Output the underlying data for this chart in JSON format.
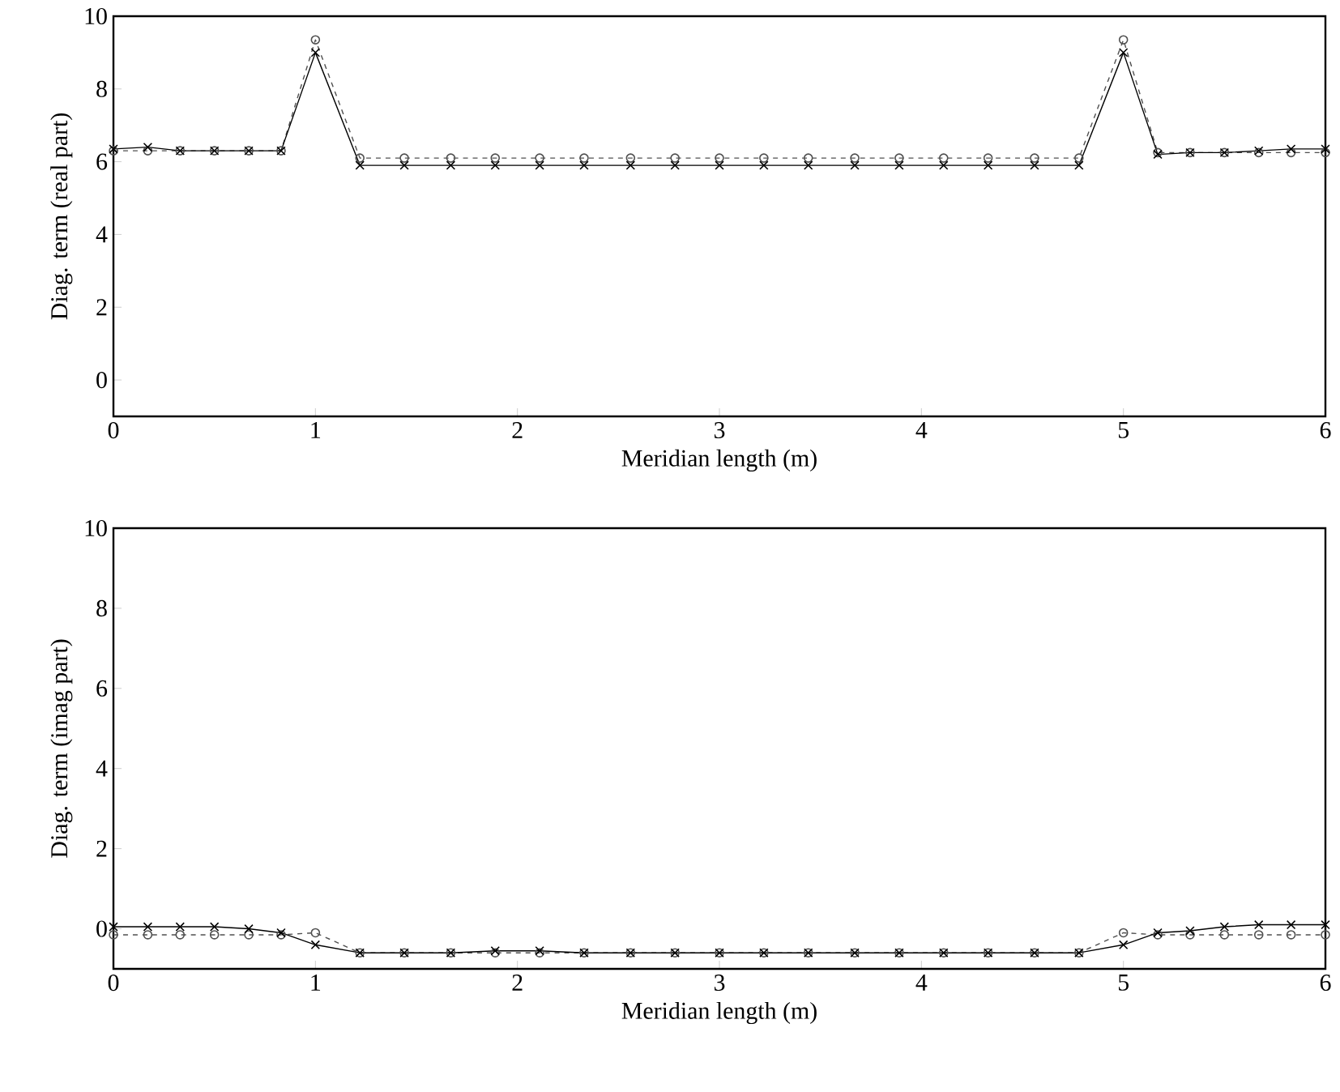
{
  "chart_data": [
    {
      "type": "line",
      "xlabel": "Meridian length (m)",
      "ylabel": "Diag. term (real part)",
      "xlim": [
        0,
        6
      ],
      "ylim": [
        -1,
        10
      ],
      "xticks": [
        0,
        1,
        2,
        3,
        4,
        5,
        6
      ],
      "yticks": [
        0,
        2,
        4,
        6,
        8,
        10
      ],
      "x": [
        0,
        0.17,
        0.33,
        0.5,
        0.67,
        0.83,
        1.0,
        1.22,
        1.44,
        1.67,
        1.89,
        2.11,
        2.33,
        2.56,
        2.78,
        3.0,
        3.22,
        3.44,
        3.67,
        3.89,
        4.11,
        4.33,
        4.56,
        4.78,
        5.0,
        5.17,
        5.33,
        5.5,
        5.67,
        5.83,
        6.0
      ],
      "series": [
        {
          "color": "#505050",
          "marker": "circle",
          "line_style": "dashed",
          "values": [
            6.3,
            6.3,
            6.3,
            6.3,
            6.3,
            6.3,
            9.35,
            6.1,
            6.1,
            6.1,
            6.1,
            6.1,
            6.1,
            6.1,
            6.1,
            6.1,
            6.1,
            6.1,
            6.1,
            6.1,
            6.1,
            6.1,
            6.1,
            6.1,
            9.35,
            6.25,
            6.25,
            6.25,
            6.25,
            6.25,
            6.25
          ]
        },
        {
          "color": "#000000",
          "marker": "cross",
          "line_style": "solid",
          "values": [
            6.35,
            6.4,
            6.3,
            6.3,
            6.3,
            6.3,
            9.0,
            5.9,
            5.9,
            5.9,
            5.9,
            5.9,
            5.9,
            5.9,
            5.9,
            5.9,
            5.9,
            5.9,
            5.9,
            5.9,
            5.9,
            5.9,
            5.9,
            5.9,
            9.0,
            6.2,
            6.25,
            6.25,
            6.3,
            6.35,
            6.35
          ]
        }
      ]
    },
    {
      "type": "line",
      "xlabel": "Meridian length (m)",
      "ylabel": "Diag. term (imag part)",
      "xlim": [
        0,
        6
      ],
      "ylim": [
        -1,
        10
      ],
      "xticks": [
        0,
        1,
        2,
        3,
        4,
        5,
        6
      ],
      "yticks": [
        0,
        2,
        4,
        6,
        8,
        10
      ],
      "x": [
        0,
        0.17,
        0.33,
        0.5,
        0.67,
        0.83,
        1.0,
        1.22,
        1.44,
        1.67,
        1.89,
        2.11,
        2.33,
        2.56,
        2.78,
        3.0,
        3.22,
        3.44,
        3.67,
        3.89,
        4.11,
        4.33,
        4.56,
        4.78,
        5.0,
        5.17,
        5.33,
        5.5,
        5.67,
        5.83,
        6.0
      ],
      "series": [
        {
          "color": "#505050",
          "marker": "circle",
          "line_style": "dashed",
          "values": [
            -0.15,
            -0.15,
            -0.15,
            -0.15,
            -0.15,
            -0.15,
            -0.1,
            -0.6,
            -0.6,
            -0.6,
            -0.6,
            -0.6,
            -0.6,
            -0.6,
            -0.6,
            -0.6,
            -0.6,
            -0.6,
            -0.6,
            -0.6,
            -0.6,
            -0.6,
            -0.6,
            -0.6,
            -0.1,
            -0.15,
            -0.15,
            -0.15,
            -0.15,
            -0.15,
            -0.15
          ]
        },
        {
          "color": "#000000",
          "marker": "cross",
          "line_style": "solid",
          "values": [
            0.05,
            0.05,
            0.05,
            0.05,
            0.0,
            -0.1,
            -0.4,
            -0.6,
            -0.6,
            -0.6,
            -0.55,
            -0.55,
            -0.6,
            -0.6,
            -0.6,
            -0.6,
            -0.6,
            -0.6,
            -0.6,
            -0.6,
            -0.6,
            -0.6,
            -0.6,
            -0.6,
            -0.4,
            -0.1,
            -0.05,
            0.05,
            0.1,
            0.1,
            0.1
          ]
        }
      ]
    }
  ]
}
